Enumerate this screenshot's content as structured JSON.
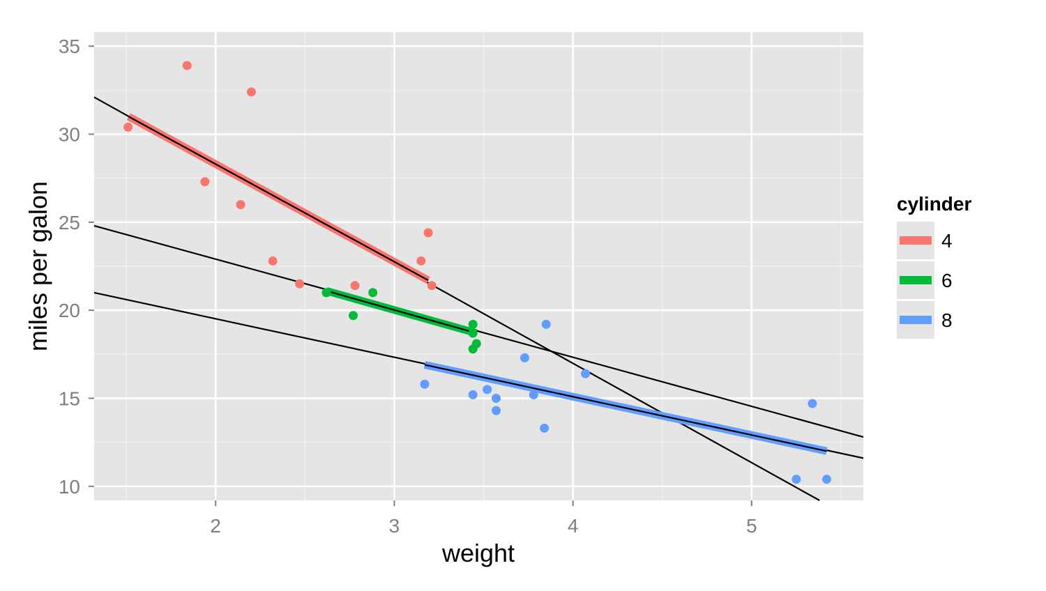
{
  "chart_data": {
    "type": "scatter",
    "xlabel": "weight",
    "ylabel": "miles per galon",
    "xlim": [
      1.32,
      5.625
    ],
    "ylim": [
      9.2,
      35.8
    ],
    "x_ticks": [
      2,
      3,
      4,
      5
    ],
    "y_ticks": [
      10,
      15,
      20,
      25,
      30,
      35
    ],
    "x_minor": [
      1.5,
      2.5,
      3.5,
      4.5,
      5.5
    ],
    "y_minor": [
      12.5,
      17.5,
      22.5,
      27.5,
      32.5
    ],
    "grid": true,
    "panel_background": "#e5e5e5",
    "legend": {
      "title": "cylinder",
      "position": "right",
      "entries": [
        "4",
        "6",
        "8"
      ]
    },
    "series": [
      {
        "name": "4",
        "color": "#f8766d",
        "points": [
          [
            1.51,
            30.4
          ],
          [
            1.84,
            33.9
          ],
          [
            1.94,
            27.3
          ],
          [
            2.14,
            26.0
          ],
          [
            2.2,
            32.4
          ],
          [
            2.32,
            22.8
          ],
          [
            2.47,
            21.5
          ],
          [
            2.78,
            21.4
          ],
          [
            3.15,
            22.8
          ],
          [
            3.19,
            24.4
          ],
          [
            3.21,
            21.4
          ]
        ],
        "fit": [
          [
            1.513,
            31.0
          ],
          [
            3.19,
            21.7
          ]
        ]
      },
      {
        "name": "6",
        "color": "#00ba38",
        "points": [
          [
            2.62,
            21.0
          ],
          [
            2.77,
            19.7
          ],
          [
            2.88,
            21.0
          ],
          [
            3.44,
            18.7
          ],
          [
            3.44,
            19.2
          ],
          [
            3.44,
            17.8
          ],
          [
            3.46,
            18.1
          ]
        ],
        "fit": [
          [
            2.62,
            21.1
          ],
          [
            3.46,
            18.7
          ]
        ]
      },
      {
        "name": "8",
        "color": "#619cff",
        "points": [
          [
            3.17,
            15.8
          ],
          [
            3.44,
            15.2
          ],
          [
            3.52,
            15.5
          ],
          [
            3.57,
            15.0
          ],
          [
            3.57,
            14.3
          ],
          [
            3.73,
            17.3
          ],
          [
            3.78,
            15.2
          ],
          [
            3.84,
            13.3
          ],
          [
            3.85,
            19.2
          ],
          [
            4.07,
            16.4
          ],
          [
            5.25,
            10.4
          ],
          [
            5.34,
            14.7
          ],
          [
            5.42,
            10.4
          ]
        ],
        "fit": [
          [
            3.17,
            16.9
          ],
          [
            5.42,
            12.0
          ]
        ]
      }
    ],
    "overall_fits": [
      [
        [
          1.32,
          32.1
        ],
        [
          5.38,
          9.2
        ]
      ],
      [
        [
          1.32,
          24.8
        ],
        [
          5.625,
          12.8
        ]
      ],
      [
        [
          1.32,
          21.0
        ],
        [
          5.625,
          11.6
        ]
      ]
    ]
  }
}
